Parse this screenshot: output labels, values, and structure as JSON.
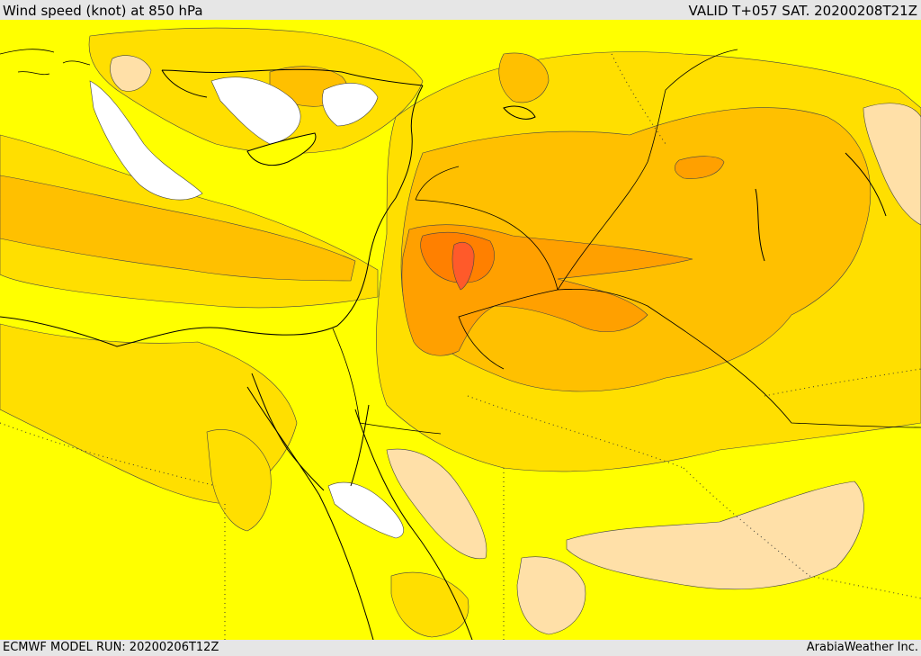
{
  "header": {
    "title": "Wind speed (knot) at 850 hPa",
    "valid": "VALID T+057 SAT. 20200208T21Z"
  },
  "footer": {
    "model_run": "ECMWF MODEL RUN: 20200206T12Z",
    "credit": "ArabiaWeather Inc."
  },
  "colors": {
    "calm": "#ffffff",
    "light": "#ffe0a8",
    "low": "#ffff00",
    "moderate": "#ffdf00",
    "fresh": "#ffc000",
    "strong": "#ffa000",
    "very_strong": "#ff8000",
    "peak": "#ff5a2a",
    "coast": "#000000"
  }
}
